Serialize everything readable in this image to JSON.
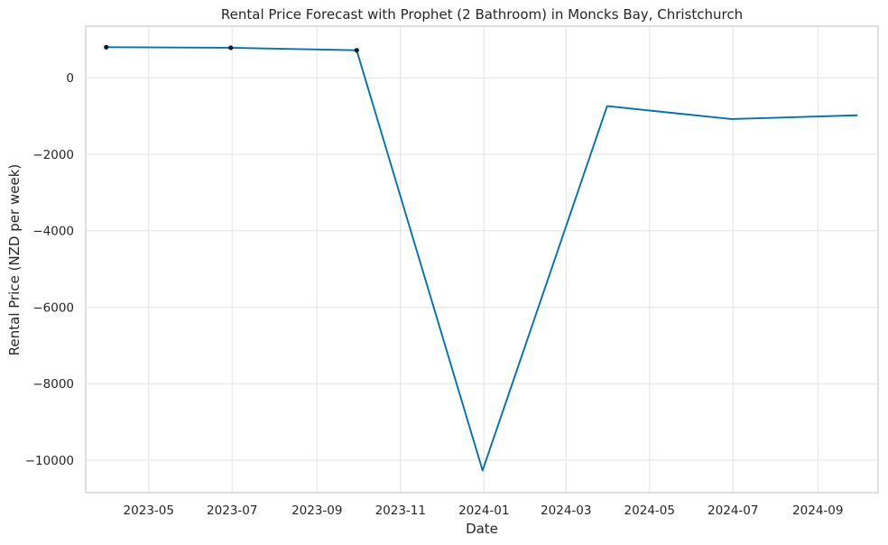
{
  "chart_data": {
    "type": "line",
    "title": "Rental Price Forecast with Prophet (2 Bathroom) in Moncks Bay, Christchurch",
    "xlabel": "Date",
    "ylabel": "Rental Price (NZD per week)",
    "x_ticks": [
      "2023-05",
      "2023-07",
      "2023-09",
      "2023-11",
      "2024-01",
      "2024-03",
      "2024-05",
      "2024-07",
      "2024-09"
    ],
    "y_ticks": [
      0,
      -2000,
      -4000,
      -6000,
      -8000,
      -10000
    ],
    "y_tick_labels": [
      "0",
      "−2000",
      "−4000",
      "−6000",
      "−8000",
      "−10000"
    ],
    "xlim": [
      "2023-03-16",
      "2024-10-15"
    ],
    "ylim": [
      -10850,
      1350
    ],
    "grid": true,
    "series": [
      {
        "kind": "forecast",
        "color": "#0072b2",
        "points": [
          {
            "x": "2023-03-31",
            "y": 800
          },
          {
            "x": "2023-06-30",
            "y": 785
          },
          {
            "x": "2023-09-30",
            "y": 720
          },
          {
            "x": "2023-12-31",
            "y": -10270
          },
          {
            "x": "2024-03-31",
            "y": -740
          },
          {
            "x": "2024-06-30",
            "y": -1080
          },
          {
            "x": "2024-09-30",
            "y": -980
          }
        ]
      },
      {
        "kind": "observed",
        "color": "#0a1a2a",
        "points": [
          {
            "x": "2023-03-31",
            "y": 800
          },
          {
            "x": "2023-06-30",
            "y": 785
          },
          {
            "x": "2023-09-30",
            "y": 720
          }
        ]
      }
    ]
  }
}
